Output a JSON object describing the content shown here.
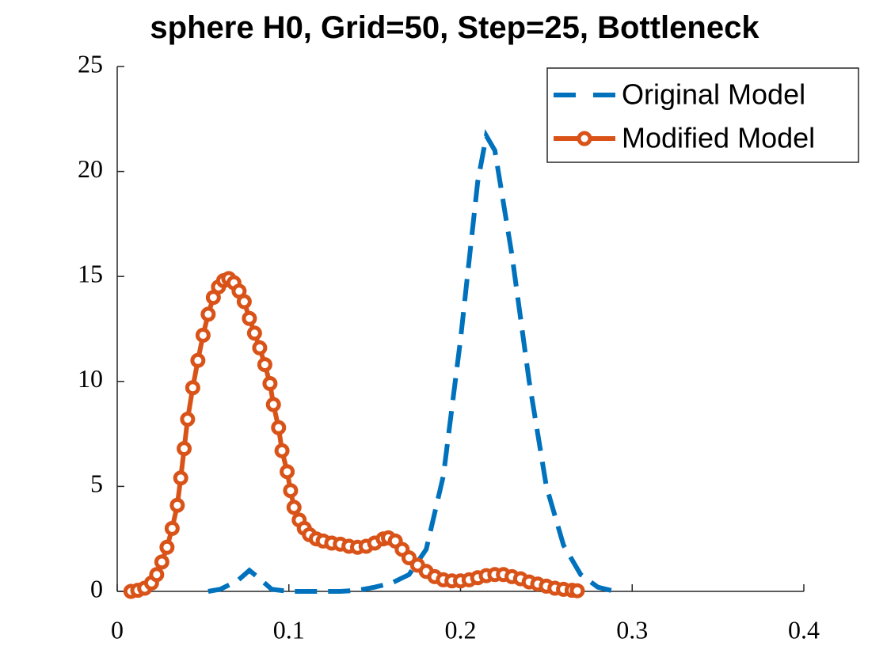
{
  "chart_data": {
    "type": "line",
    "title": "sphere H0, Grid=50, Step=25, Bottleneck",
    "xlim": [
      0,
      0.4
    ],
    "xticks": [
      0,
      0.1,
      0.2,
      0.3,
      0.4
    ],
    "ylim": [
      0,
      25
    ],
    "yticks": [
      0,
      5,
      10,
      15,
      20,
      25
    ],
    "grid": false,
    "legend": "upper-right",
    "series": [
      {
        "name": "Original Model",
        "color": "#0072bd",
        "style": "dashed",
        "marker": "none",
        "x": [
          0.053,
          0.06,
          0.07,
          0.077,
          0.083,
          0.09,
          0.1,
          0.11,
          0.12,
          0.13,
          0.14,
          0.15,
          0.16,
          0.17,
          0.18,
          0.19,
          0.2,
          0.21,
          0.215,
          0.22,
          0.23,
          0.24,
          0.25,
          0.26,
          0.27,
          0.28,
          0.29
        ],
        "values": [
          0,
          0.1,
          0.5,
          1.0,
          0.6,
          0.1,
          0,
          0,
          0,
          0,
          0.05,
          0.2,
          0.4,
          0.8,
          2.0,
          5.5,
          12,
          19.5,
          21.7,
          21,
          16,
          10,
          5,
          2.2,
          0.8,
          0.2,
          0
        ]
      },
      {
        "name": "Modified Model",
        "color": "#d95319",
        "style": "solid",
        "marker": "circle",
        "x": [
          0.008,
          0.012,
          0.016,
          0.02,
          0.023,
          0.026,
          0.029,
          0.032,
          0.035,
          0.037,
          0.039,
          0.041,
          0.044,
          0.047,
          0.05,
          0.053,
          0.056,
          0.059,
          0.062,
          0.065,
          0.068,
          0.071,
          0.074,
          0.077,
          0.08,
          0.083,
          0.086,
          0.089,
          0.091,
          0.094,
          0.096,
          0.099,
          0.101,
          0.103,
          0.106,
          0.109,
          0.112,
          0.116,
          0.12,
          0.125,
          0.13,
          0.135,
          0.14,
          0.145,
          0.15,
          0.155,
          0.158,
          0.162,
          0.166,
          0.17,
          0.175,
          0.18,
          0.185,
          0.19,
          0.195,
          0.2,
          0.205,
          0.21,
          0.215,
          0.22,
          0.225,
          0.23,
          0.235,
          0.24,
          0.245,
          0.25,
          0.255,
          0.26,
          0.265,
          0.268
        ],
        "values": [
          0,
          0.05,
          0.15,
          0.4,
          0.8,
          1.4,
          2.1,
          3.0,
          4.1,
          5.4,
          6.8,
          8.2,
          9.7,
          11.0,
          12.2,
          13.2,
          14.0,
          14.5,
          14.8,
          14.9,
          14.7,
          14.3,
          13.8,
          13.0,
          12.3,
          11.6,
          10.8,
          9.9,
          8.9,
          7.8,
          6.7,
          5.7,
          4.8,
          4.0,
          3.4,
          3.0,
          2.7,
          2.5,
          2.4,
          2.3,
          2.25,
          2.15,
          2.1,
          2.15,
          2.3,
          2.5,
          2.55,
          2.4,
          2.0,
          1.6,
          1.25,
          0.95,
          0.7,
          0.55,
          0.5,
          0.5,
          0.55,
          0.65,
          0.75,
          0.8,
          0.8,
          0.7,
          0.6,
          0.45,
          0.35,
          0.25,
          0.15,
          0.1,
          0.05,
          0.03
        ]
      }
    ]
  }
}
